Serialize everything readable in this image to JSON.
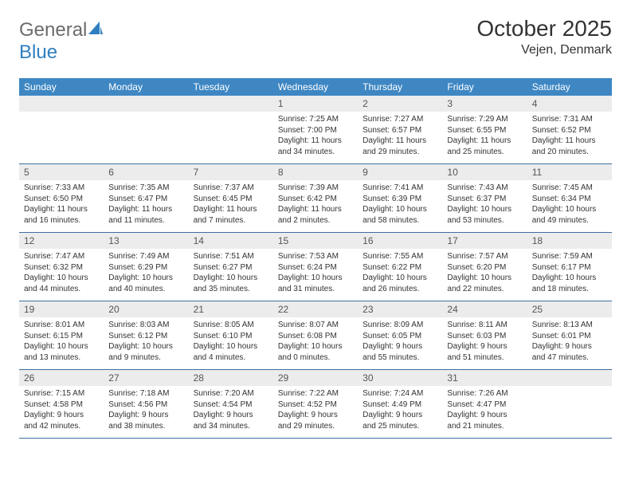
{
  "brand": {
    "part1": "General",
    "part2": "Blue"
  },
  "title": "October 2025",
  "location": "Vejen, Denmark",
  "header_bg": "#3e87c3",
  "row_bg": "#ececec",
  "rule_color": "#3e6fa3",
  "dow": [
    "Sunday",
    "Monday",
    "Tuesday",
    "Wednesday",
    "Thursday",
    "Friday",
    "Saturday"
  ],
  "weeks": [
    [
      {
        "n": "",
        "sr": "",
        "ss": "",
        "d1": "",
        "d2": ""
      },
      {
        "n": "",
        "sr": "",
        "ss": "",
        "d1": "",
        "d2": ""
      },
      {
        "n": "",
        "sr": "",
        "ss": "",
        "d1": "",
        "d2": ""
      },
      {
        "n": "1",
        "sr": "Sunrise: 7:25 AM",
        "ss": "Sunset: 7:00 PM",
        "d1": "Daylight: 11 hours",
        "d2": "and 34 minutes."
      },
      {
        "n": "2",
        "sr": "Sunrise: 7:27 AM",
        "ss": "Sunset: 6:57 PM",
        "d1": "Daylight: 11 hours",
        "d2": "and 29 minutes."
      },
      {
        "n": "3",
        "sr": "Sunrise: 7:29 AM",
        "ss": "Sunset: 6:55 PM",
        "d1": "Daylight: 11 hours",
        "d2": "and 25 minutes."
      },
      {
        "n": "4",
        "sr": "Sunrise: 7:31 AM",
        "ss": "Sunset: 6:52 PM",
        "d1": "Daylight: 11 hours",
        "d2": "and 20 minutes."
      }
    ],
    [
      {
        "n": "5",
        "sr": "Sunrise: 7:33 AM",
        "ss": "Sunset: 6:50 PM",
        "d1": "Daylight: 11 hours",
        "d2": "and 16 minutes."
      },
      {
        "n": "6",
        "sr": "Sunrise: 7:35 AM",
        "ss": "Sunset: 6:47 PM",
        "d1": "Daylight: 11 hours",
        "d2": "and 11 minutes."
      },
      {
        "n": "7",
        "sr": "Sunrise: 7:37 AM",
        "ss": "Sunset: 6:45 PM",
        "d1": "Daylight: 11 hours",
        "d2": "and 7 minutes."
      },
      {
        "n": "8",
        "sr": "Sunrise: 7:39 AM",
        "ss": "Sunset: 6:42 PM",
        "d1": "Daylight: 11 hours",
        "d2": "and 2 minutes."
      },
      {
        "n": "9",
        "sr": "Sunrise: 7:41 AM",
        "ss": "Sunset: 6:39 PM",
        "d1": "Daylight: 10 hours",
        "d2": "and 58 minutes."
      },
      {
        "n": "10",
        "sr": "Sunrise: 7:43 AM",
        "ss": "Sunset: 6:37 PM",
        "d1": "Daylight: 10 hours",
        "d2": "and 53 minutes."
      },
      {
        "n": "11",
        "sr": "Sunrise: 7:45 AM",
        "ss": "Sunset: 6:34 PM",
        "d1": "Daylight: 10 hours",
        "d2": "and 49 minutes."
      }
    ],
    [
      {
        "n": "12",
        "sr": "Sunrise: 7:47 AM",
        "ss": "Sunset: 6:32 PM",
        "d1": "Daylight: 10 hours",
        "d2": "and 44 minutes."
      },
      {
        "n": "13",
        "sr": "Sunrise: 7:49 AM",
        "ss": "Sunset: 6:29 PM",
        "d1": "Daylight: 10 hours",
        "d2": "and 40 minutes."
      },
      {
        "n": "14",
        "sr": "Sunrise: 7:51 AM",
        "ss": "Sunset: 6:27 PM",
        "d1": "Daylight: 10 hours",
        "d2": "and 35 minutes."
      },
      {
        "n": "15",
        "sr": "Sunrise: 7:53 AM",
        "ss": "Sunset: 6:24 PM",
        "d1": "Daylight: 10 hours",
        "d2": "and 31 minutes."
      },
      {
        "n": "16",
        "sr": "Sunrise: 7:55 AM",
        "ss": "Sunset: 6:22 PM",
        "d1": "Daylight: 10 hours",
        "d2": "and 26 minutes."
      },
      {
        "n": "17",
        "sr": "Sunrise: 7:57 AM",
        "ss": "Sunset: 6:20 PM",
        "d1": "Daylight: 10 hours",
        "d2": "and 22 minutes."
      },
      {
        "n": "18",
        "sr": "Sunrise: 7:59 AM",
        "ss": "Sunset: 6:17 PM",
        "d1": "Daylight: 10 hours",
        "d2": "and 18 minutes."
      }
    ],
    [
      {
        "n": "19",
        "sr": "Sunrise: 8:01 AM",
        "ss": "Sunset: 6:15 PM",
        "d1": "Daylight: 10 hours",
        "d2": "and 13 minutes."
      },
      {
        "n": "20",
        "sr": "Sunrise: 8:03 AM",
        "ss": "Sunset: 6:12 PM",
        "d1": "Daylight: 10 hours",
        "d2": "and 9 minutes."
      },
      {
        "n": "21",
        "sr": "Sunrise: 8:05 AM",
        "ss": "Sunset: 6:10 PM",
        "d1": "Daylight: 10 hours",
        "d2": "and 4 minutes."
      },
      {
        "n": "22",
        "sr": "Sunrise: 8:07 AM",
        "ss": "Sunset: 6:08 PM",
        "d1": "Daylight: 10 hours",
        "d2": "and 0 minutes."
      },
      {
        "n": "23",
        "sr": "Sunrise: 8:09 AM",
        "ss": "Sunset: 6:05 PM",
        "d1": "Daylight: 9 hours",
        "d2": "and 55 minutes."
      },
      {
        "n": "24",
        "sr": "Sunrise: 8:11 AM",
        "ss": "Sunset: 6:03 PM",
        "d1": "Daylight: 9 hours",
        "d2": "and 51 minutes."
      },
      {
        "n": "25",
        "sr": "Sunrise: 8:13 AM",
        "ss": "Sunset: 6:01 PM",
        "d1": "Daylight: 9 hours",
        "d2": "and 47 minutes."
      }
    ],
    [
      {
        "n": "26",
        "sr": "Sunrise: 7:15 AM",
        "ss": "Sunset: 4:58 PM",
        "d1": "Daylight: 9 hours",
        "d2": "and 42 minutes."
      },
      {
        "n": "27",
        "sr": "Sunrise: 7:18 AM",
        "ss": "Sunset: 4:56 PM",
        "d1": "Daylight: 9 hours",
        "d2": "and 38 minutes."
      },
      {
        "n": "28",
        "sr": "Sunrise: 7:20 AM",
        "ss": "Sunset: 4:54 PM",
        "d1": "Daylight: 9 hours",
        "d2": "and 34 minutes."
      },
      {
        "n": "29",
        "sr": "Sunrise: 7:22 AM",
        "ss": "Sunset: 4:52 PM",
        "d1": "Daylight: 9 hours",
        "d2": "and 29 minutes."
      },
      {
        "n": "30",
        "sr": "Sunrise: 7:24 AM",
        "ss": "Sunset: 4:49 PM",
        "d1": "Daylight: 9 hours",
        "d2": "and 25 minutes."
      },
      {
        "n": "31",
        "sr": "Sunrise: 7:26 AM",
        "ss": "Sunset: 4:47 PM",
        "d1": "Daylight: 9 hours",
        "d2": "and 21 minutes."
      },
      {
        "n": "",
        "sr": "",
        "ss": "",
        "d1": "",
        "d2": ""
      }
    ]
  ]
}
